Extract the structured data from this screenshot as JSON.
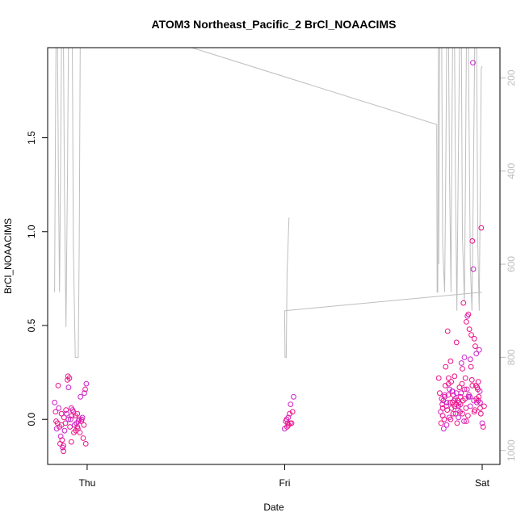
{
  "chart_data": {
    "type": "scatter",
    "title": "ATOM3 Northeast_Pacific_2 BrCl_NOAACIMS",
    "xlabel": "Date",
    "ylabel": "BrCl_NOAACIMS",
    "x_ticks": [
      {
        "label": "Thu",
        "value": 1.0
      },
      {
        "label": "Fri",
        "value": 2.0
      },
      {
        "label": "Sat",
        "value": 3.0
      }
    ],
    "xlim": [
      0.8,
      3.09
    ],
    "ylim": [
      -0.24,
      1.98
    ],
    "y_ticks": [
      0.0,
      0.5,
      1.0,
      1.5
    ],
    "y_tick_labels": [
      "0.0",
      "0.5",
      "1.0",
      "1.5"
    ],
    "y2lim": [
      1030,
      135
    ],
    "y2_ticks": [
      200,
      400,
      600,
      800,
      1000
    ],
    "y2_tick_labels": [
      "200",
      "400",
      "600",
      "800",
      "1000"
    ],
    "grid": false,
    "colors": {
      "points": "#ee1188",
      "points_alt": "#cc22cc",
      "pressure_line": "#bebebe"
    },
    "series": [
      {
        "kind": "points",
        "values": [
          [
            0.835,
            0.09
          ],
          [
            0.84,
            0.04
          ],
          [
            0.843,
            -0.01
          ],
          [
            0.846,
            -0.05
          ],
          [
            0.85,
            -0.02
          ],
          [
            0.853,
            0.18
          ],
          [
            0.856,
            0.06
          ],
          [
            0.86,
            -0.04
          ],
          [
            0.863,
            -0.13
          ],
          [
            0.866,
            -0.09
          ],
          [
            0.87,
            -0.03
          ],
          [
            0.873,
            -0.11
          ],
          [
            0.876,
            -0.15
          ],
          [
            0.88,
            -0.17
          ],
          [
            0.883,
            0.01
          ],
          [
            0.886,
            -0.06
          ],
          [
            0.89,
            -0.02
          ],
          [
            0.893,
            0.05
          ],
          [
            0.896,
            0.03
          ],
          [
            0.9,
            0.21
          ],
          [
            0.903,
            0.23
          ],
          [
            0.906,
            0.17
          ],
          [
            0.91,
            0.22
          ],
          [
            0.913,
            -0.04
          ],
          [
            0.916,
            0.0
          ],
          [
            0.92,
            0.06
          ],
          [
            0.923,
            0.02
          ],
          [
            0.926,
            0.05
          ],
          [
            0.93,
            0.04
          ],
          [
            0.933,
            -0.07
          ],
          [
            0.936,
            -0.03
          ],
          [
            0.94,
            0.02
          ],
          [
            0.943,
            -0.06
          ],
          [
            0.946,
            -0.02
          ],
          [
            0.95,
            0.03
          ],
          [
            0.953,
            -0.05
          ],
          [
            0.956,
            -0.01
          ],
          [
            0.96,
            0.0
          ],
          [
            0.963,
            -0.07
          ],
          [
            0.966,
            0.12
          ],
          [
            0.97,
            -0.01
          ],
          [
            0.973,
            0.0
          ],
          [
            0.976,
            0.01
          ],
          [
            0.98,
            -0.1
          ],
          [
            0.983,
            -0.03
          ],
          [
            0.986,
            0.14
          ],
          [
            0.99,
            0.16
          ],
          [
            0.993,
            -0.13
          ],
          [
            0.996,
            0.19
          ],
          [
            0.92,
            -0.12
          ],
          [
            0.88,
            -0.14
          ],
          [
            0.905,
            0.0
          ],
          [
            0.95,
            -0.04
          ],
          [
            0.87,
            0.03
          ],
          [
            2.0,
            -0.05
          ],
          [
            2.005,
            -0.01
          ],
          [
            2.01,
            0.0
          ],
          [
            2.015,
            -0.02
          ],
          [
            2.02,
            -0.03
          ],
          [
            2.025,
            0.03
          ],
          [
            2.03,
            0.08
          ],
          [
            2.035,
            -0.02
          ],
          [
            2.04,
            0.04
          ],
          [
            2.045,
            0.12
          ],
          [
            2.012,
            -0.04
          ],
          [
            2.028,
            -0.02
          ],
          [
            2.018,
            0.01
          ],
          [
            2.78,
            0.22
          ],
          [
            2.785,
            0.14
          ],
          [
            2.79,
            0.04
          ],
          [
            2.795,
            0.11
          ],
          [
            2.8,
            0.02
          ],
          [
            2.805,
            -0.05
          ],
          [
            2.81,
            0.12
          ],
          [
            2.815,
            0.28
          ],
          [
            2.82,
            0.09
          ],
          [
            2.825,
            0.47
          ],
          [
            2.83,
            0.22
          ],
          [
            2.835,
            0.16
          ],
          [
            2.84,
            0.31
          ],
          [
            2.845,
            0.06
          ],
          [
            2.85,
            0.15
          ],
          [
            2.855,
            0.13
          ],
          [
            2.86,
            0.23
          ],
          [
            2.865,
            0.03
          ],
          [
            2.87,
            0.41
          ],
          [
            2.875,
            0.1
          ],
          [
            2.88,
            0.07
          ],
          [
            2.885,
            0.17
          ],
          [
            2.89,
            0.12
          ],
          [
            2.895,
            0.3
          ],
          [
            2.9,
            0.27
          ],
          [
            2.905,
            0.62
          ],
          [
            2.91,
            0.33
          ],
          [
            2.915,
            0.22
          ],
          [
            2.92,
            0.52
          ],
          [
            2.925,
            0.55
          ],
          [
            2.93,
            0.56
          ],
          [
            2.935,
            0.48
          ],
          [
            2.94,
            0.32
          ],
          [
            2.945,
            0.45
          ],
          [
            2.95,
            0.95
          ],
          [
            2.955,
            0.8
          ],
          [
            2.96,
            0.43
          ],
          [
            2.965,
            0.39
          ],
          [
            2.97,
            0.35
          ],
          [
            2.975,
            0.17
          ],
          [
            2.98,
            0.2
          ],
          [
            2.985,
            0.37
          ],
          [
            2.99,
            0.06
          ],
          [
            2.995,
            1.02
          ],
          [
            3.0,
            -0.02
          ],
          [
            3.005,
            -0.04
          ],
          [
            3.01,
            0.07
          ],
          [
            2.953,
            1.9
          ],
          [
            2.792,
            -0.02
          ],
          [
            2.798,
            0.08
          ],
          [
            2.803,
            0.1
          ],
          [
            2.808,
            0.0
          ],
          [
            2.813,
            0.18
          ],
          [
            2.818,
            0.07
          ],
          [
            2.823,
            0.05
          ],
          [
            2.828,
            0.13
          ],
          [
            2.833,
            0.01
          ],
          [
            2.838,
            0.09
          ],
          [
            2.843,
            0.2
          ],
          [
            2.848,
            0.15
          ],
          [
            2.853,
            0.03
          ],
          [
            2.858,
            0.1
          ],
          [
            2.863,
            0.11
          ],
          [
            2.868,
            0.08
          ],
          [
            2.873,
            -0.02
          ],
          [
            2.878,
            0.05
          ],
          [
            2.883,
            0.09
          ],
          [
            2.888,
            0.04
          ],
          [
            2.893,
            0.14
          ],
          [
            2.898,
            0.19
          ],
          [
            2.903,
            0.1
          ],
          [
            2.908,
            -0.01
          ],
          [
            2.913,
            0.11
          ],
          [
            2.918,
            0.06
          ],
          [
            2.923,
            0.16
          ],
          [
            2.928,
            0.02
          ],
          [
            2.933,
            0.13
          ],
          [
            2.938,
            0.12
          ],
          [
            2.943,
            0.28
          ],
          [
            2.948,
            0.21
          ],
          [
            2.958,
            0.1
          ],
          [
            2.963,
            0.05
          ],
          [
            2.968,
            0.18
          ],
          [
            2.973,
            0.09
          ],
          [
            2.978,
            0.16
          ],
          [
            2.983,
            0.12
          ],
          [
            2.988,
            0.15
          ],
          [
            2.993,
            0.03
          ],
          [
            2.8,
            0.06
          ],
          [
            2.82,
            -0.03
          ],
          [
            2.84,
            0.0
          ],
          [
            2.86,
            0.07
          ],
          [
            2.88,
            0.01
          ],
          [
            2.9,
            0.03
          ],
          [
            2.92,
            -0.01
          ],
          [
            2.94,
            0.07
          ],
          [
            2.96,
            0.04
          ],
          [
            2.98,
            0.1
          ],
          [
            2.81,
            0.13
          ],
          [
            2.83,
            0.19
          ],
          [
            2.85,
            0.09
          ],
          [
            2.87,
            0.14
          ],
          [
            2.89,
            0.08
          ],
          [
            2.91,
            0.16
          ],
          [
            2.93,
            0.12
          ],
          [
            2.95,
            0.18
          ],
          [
            2.97,
            0.11
          ],
          [
            2.99,
            0.09
          ]
        ]
      },
      {
        "kind": "pressure",
        "segments": [
          [
            [
              0.835,
              660
            ],
            [
              0.838,
              420
            ],
            [
              0.842,
              135
            ],
            [
              0.85,
              135
            ],
            [
              0.855,
              420
            ],
            [
              0.86,
              660
            ],
            [
              0.865,
              420
            ],
            [
              0.87,
              135
            ],
            [
              0.88,
              135
            ],
            [
              0.885,
              440
            ],
            [
              0.893,
              735
            ],
            [
              0.9,
              420
            ],
            [
              0.905,
              135
            ],
            [
              0.925,
              135
            ],
            [
              0.93,
              560
            ],
            [
              0.94,
              800
            ],
            [
              0.955,
              800
            ],
            [
              0.96,
              560
            ],
            [
              0.965,
              135
            ]
          ],
          [
            [
              1.53,
              135
            ],
            [
              2.77,
              300
            ],
            [
              2.772,
              660
            ],
            [
              2.775,
              660
            ],
            [
              2.778,
              135
            ]
          ],
          [
            [
              2.0,
              700
            ],
            [
              2.002,
              800
            ],
            [
              2.008,
              800
            ],
            [
              2.012,
              620
            ],
            [
              2.022,
              500
            ]
          ],
          [
            [
              2.0,
              700
            ],
            [
              3.0,
              660
            ]
          ],
          [
            [
              2.78,
              600
            ],
            [
              2.785,
              135
            ],
            [
              2.795,
              135
            ],
            [
              2.8,
              560
            ],
            [
              2.81,
              660
            ],
            [
              2.815,
              420
            ],
            [
              2.82,
              135
            ],
            [
              2.83,
              135
            ],
            [
              2.835,
              420
            ],
            [
              2.842,
              660
            ],
            [
              2.845,
              420
            ],
            [
              2.85,
              135
            ],
            [
              2.86,
              135
            ],
            [
              2.865,
              440
            ],
            [
              2.872,
              700
            ],
            [
              2.878,
              420
            ],
            [
              2.885,
              135
            ],
            [
              2.895,
              135
            ],
            [
              2.9,
              540
            ],
            [
              2.91,
              680
            ],
            [
              2.915,
              440
            ],
            [
              2.92,
              135
            ],
            [
              2.93,
              135
            ],
            [
              2.94,
              600
            ],
            [
              2.948,
              700
            ],
            [
              2.955,
              440
            ],
            [
              2.962,
              135
            ],
            [
              2.972,
              135
            ],
            [
              2.978,
              560
            ],
            [
              2.985,
              700
            ],
            [
              2.99,
              460
            ],
            [
              2.995,
              180
            ],
            [
              3.0,
              175
            ]
          ]
        ]
      }
    ]
  }
}
